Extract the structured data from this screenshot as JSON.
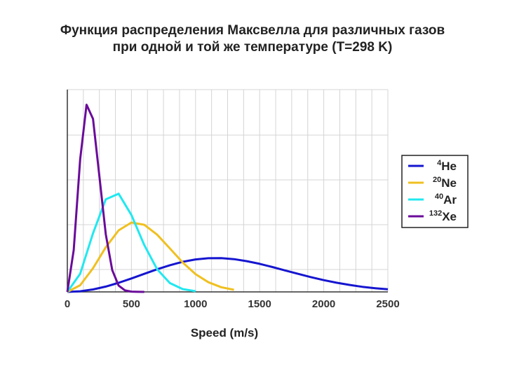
{
  "title": {
    "line1": "Функция распределения Максвелла для различных газов",
    "line2": "при одной и той же температуре (T=298 K)"
  },
  "chart_data": {
    "type": "line",
    "title": "Функция распределения Максвелла для различных газов при одной и той же температуре (T=298 K)",
    "xlabel": "Speed (m/s)",
    "ylabel": "",
    "xlim": [
      0,
      2500
    ],
    "ylim": [
      0,
      0.0045
    ],
    "x_ticks": [
      "0",
      "500",
      "1000",
      "1500",
      "2000",
      "2500"
    ],
    "grid": true,
    "legend_position": "right",
    "temperature_K": 298,
    "series": [
      {
        "name": "He",
        "mass_number": "4",
        "color": "#1515d0",
        "x": [
          0,
          100,
          200,
          300,
          400,
          500,
          600,
          700,
          800,
          900,
          1000,
          1100,
          1200,
          1300,
          1400,
          1500,
          1600,
          1700,
          1800,
          1900,
          2000,
          2100,
          2200,
          2300,
          2400,
          2500
        ],
        "y": [
          0,
          1.4e-05,
          5.4e-05,
          0.000119,
          0.000202,
          0.000299,
          0.000402,
          0.000503,
          0.000594,
          0.000669,
          0.000722,
          0.000749,
          0.000751,
          0.000728,
          0.000684,
          0.000624,
          0.000553,
          0.000477,
          0.000401,
          0.000328,
          0.000262,
          0.000204,
          0.000155,
          0.000114,
          8.2e-05,
          5.8e-05
        ]
      },
      {
        "name": "Ne",
        "mass_number": "20",
        "color": "#f0c020",
        "x": [
          0,
          100,
          200,
          300,
          400,
          500,
          600,
          700,
          800,
          900,
          1000,
          1100,
          1200,
          1300
        ],
        "y": [
          0,
          0.000148,
          0.000527,
          0.000992,
          0.001368,
          0.001543,
          0.001493,
          0.001274,
          0.000967,
          0.000654,
          0.000396,
          0.000215,
          0.000105,
          4.6e-05
        ]
      },
      {
        "name": "Ar",
        "mass_number": "40",
        "color": "#20e8f0",
        "x": [
          0,
          100,
          200,
          300,
          400,
          500,
          600,
          700,
          800,
          900,
          1000
        ],
        "y": [
          0,
          0.000403,
          0.001303,
          0.00206,
          0.002184,
          0.001709,
          0.001041,
          0.000504,
          0.000196,
          6.2e-05,
          1.6e-05
        ]
      },
      {
        "name": "Xe",
        "mass_number": "132",
        "color": "#6a0a9a",
        "x": [
          0,
          50,
          100,
          150,
          200,
          250,
          300,
          350,
          400,
          450,
          500,
          550,
          600
        ],
        "y": [
          0,
          0.000931,
          0.002951,
          0.004163,
          0.003851,
          0.002573,
          0.001283,
          0.000486,
          0.000141,
          3.2e-05,
          5.7e-06,
          8e-07,
          1e-07
        ]
      }
    ]
  }
}
